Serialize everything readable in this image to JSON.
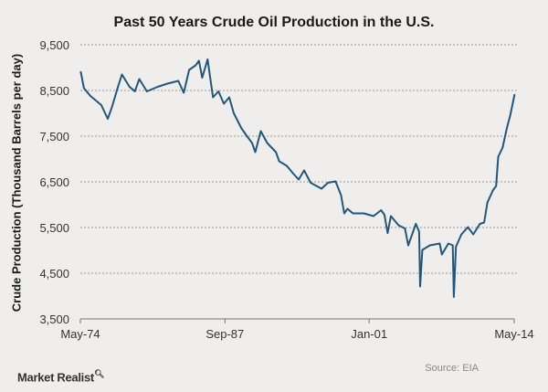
{
  "chart_data": {
    "type": "line",
    "title": "Past 50 Years Crude Oil Production  in the U.S.",
    "xlabel": "",
    "ylabel": "Crude Production (Thousand Barrels per day)",
    "ylim": [
      3500,
      9500
    ],
    "xlim": [
      1974.37,
      2014.37
    ],
    "yticks": [
      "9,500",
      "8,500",
      "7,500",
      "6,500",
      "5,500",
      "4,500",
      "3,500"
    ],
    "ytick_values": [
      9500,
      8500,
      7500,
      6500,
      5500,
      4500,
      3500
    ],
    "xticks": [
      "May-74",
      "Sep-87",
      "Jan-01",
      "May-14"
    ],
    "xtick_values": [
      1974.37,
      1987.7,
      2001.0,
      2014.37
    ],
    "grid": "horizontal dashed",
    "legend": "none",
    "color": "#24567a",
    "series": [
      {
        "name": "U.S. crude oil production",
        "x": [
          1974.4,
          1974.7,
          1975.3,
          1976.3,
          1976.9,
          1977.3,
          1977.8,
          1978.2,
          1978.9,
          1979.4,
          1979.8,
          1980.5,
          1981.5,
          1982.4,
          1983.4,
          1983.9,
          1984.4,
          1985.0,
          1985.3,
          1985.6,
          1986.1,
          1986.6,
          1987.1,
          1987.6,
          1988.1,
          1988.5,
          1989.2,
          1989.7,
          1990.2,
          1990.5,
          1991.0,
          1991.6,
          1992.4,
          1992.7,
          1993.4,
          1994.0,
          1994.5,
          1995.0,
          1995.6,
          1996.6,
          1997.2,
          1997.9,
          1998.4,
          1998.7,
          1999.0,
          1999.5,
          2000.5,
          2001.4,
          2002.1,
          2002.4,
          2002.7,
          2003.0,
          2003.7,
          2004.3,
          2004.6,
          2005.3,
          2005.6,
          2005.7,
          2005.9,
          2006.6,
          2007.5,
          2007.7,
          2008.3,
          2008.7,
          2008.8,
          2009.0,
          2009.5,
          2010.1,
          2010.6,
          2011.2,
          2011.6,
          2011.9,
          2012.4,
          2012.7,
          2012.9,
          2013.3,
          2013.7,
          2014.0,
          2014.4
        ],
        "values": [
          8910,
          8550,
          8380,
          8180,
          7880,
          8150,
          8550,
          8850,
          8580,
          8480,
          8750,
          8480,
          8580,
          8650,
          8710,
          8450,
          8950,
          9050,
          9150,
          8780,
          9180,
          8350,
          8480,
          8210,
          8350,
          8010,
          7680,
          7510,
          7350,
          7150,
          7610,
          7350,
          7150,
          6950,
          6850,
          6680,
          6550,
          6750,
          6480,
          6350,
          6480,
          6510,
          6210,
          5810,
          5910,
          5810,
          5810,
          5750,
          5880,
          5780,
          5380,
          5750,
          5550,
          5480,
          5110,
          5580,
          5410,
          4210,
          5010,
          5110,
          5150,
          4910,
          5150,
          5110,
          3980,
          5080,
          5350,
          5510,
          5350,
          5580,
          5610,
          6050,
          6310,
          6410,
          7050,
          7250,
          7680,
          7950,
          8410
        ]
      }
    ]
  },
  "footer": {
    "brand": "Market Realist",
    "source": "Source: EIA"
  }
}
